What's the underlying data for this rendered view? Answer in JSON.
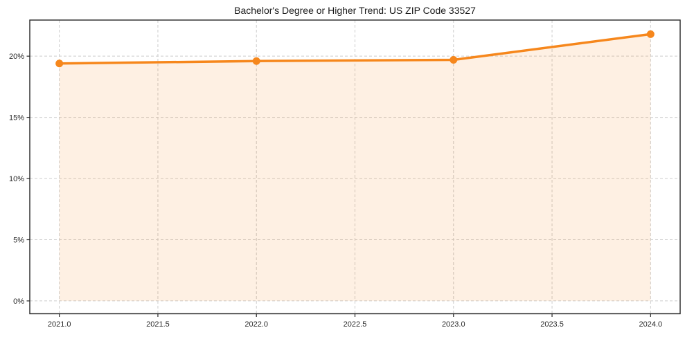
{
  "chart_data": {
    "type": "line",
    "title": "Bachelor's Degree or Higher Trend: US ZIP Code 33527",
    "x": [
      2021,
      2022,
      2023,
      2024
    ],
    "values": [
      19.4,
      19.6,
      19.7,
      21.8
    ],
    "xlabel": "",
    "ylabel": "",
    "xlim": [
      2020.85,
      2024.15
    ],
    "ylim": [
      -1.05,
      22.95
    ],
    "xticks": {
      "values": [
        2021,
        2021.5,
        2022,
        2022.5,
        2023,
        2023.5,
        2024
      ],
      "labels": [
        "2021.0",
        "2021.5",
        "2022.0",
        "2022.5",
        "2023.0",
        "2023.5",
        "2024.0"
      ]
    },
    "yticks": {
      "values": [
        0,
        5,
        10,
        15,
        20
      ],
      "labels": [
        "0%",
        "5%",
        "10%",
        "15%",
        "20%"
      ]
    },
    "grid": true,
    "grid_style": "dashed",
    "legend": false,
    "fill_to_zero": true,
    "marker": "circle",
    "colors": {
      "line": "#F6871C",
      "fill": "rgba(246,135,28,0.12)",
      "grid": "#CCCCCC",
      "spine": "#262626",
      "tick_text": "#262626",
      "title_text": "#1A1A1A"
    }
  }
}
